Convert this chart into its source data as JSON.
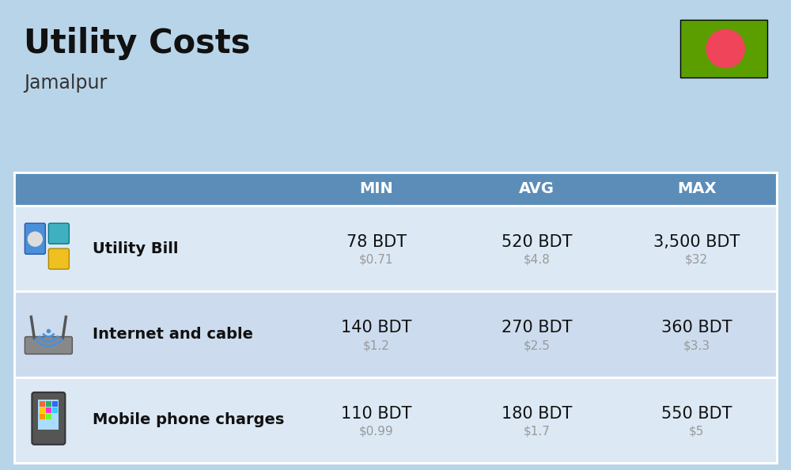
{
  "title": "Utility Costs",
  "subtitle": "Jamalpur",
  "background_color": "#b8d4e8",
  "header_bg_color": "#5b8db8",
  "header_text_color": "#ffffff",
  "row_bg_color_1": "#dce9f5",
  "row_bg_color_2": "#ccdcee",
  "table_border_color": "#ffffff",
  "rows": [
    {
      "label": "Utility Bill",
      "min_bdt": "78 BDT",
      "min_usd": "$0.71",
      "avg_bdt": "520 BDT",
      "avg_usd": "$4.8",
      "max_bdt": "3,500 BDT",
      "max_usd": "$32"
    },
    {
      "label": "Internet and cable",
      "min_bdt": "140 BDT",
      "min_usd": "$1.2",
      "avg_bdt": "270 BDT",
      "avg_usd": "$2.5",
      "max_bdt": "360 BDT",
      "max_usd": "$3.3"
    },
    {
      "label": "Mobile phone charges",
      "min_bdt": "110 BDT",
      "min_usd": "$0.99",
      "avg_bdt": "180 BDT",
      "avg_usd": "$1.7",
      "max_bdt": "550 BDT",
      "max_usd": "$5"
    }
  ],
  "flag_green": "#5b9e00",
  "flag_red": "#f0445a",
  "title_fontsize": 30,
  "subtitle_fontsize": 17,
  "header_fontsize": 14,
  "label_fontsize": 14,
  "value_fontsize": 15,
  "usd_fontsize": 11,
  "usd_color": "#999999"
}
